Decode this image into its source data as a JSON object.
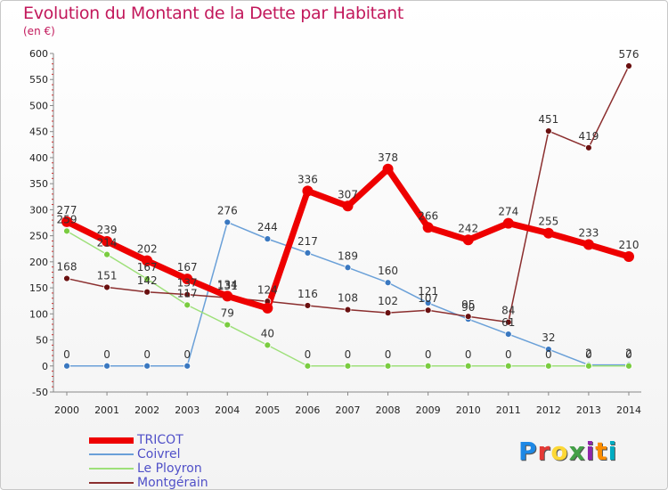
{
  "header": {
    "title": "Evolution du Montant de la Dette par Habitant",
    "subtitle": "(en €)"
  },
  "logo": {
    "text": "Proxiti",
    "colors": [
      "#1e88e5",
      "#e53935",
      "#fdd835",
      "#43a047",
      "#8e24aa",
      "#fb8c00",
      "#00acc1"
    ]
  },
  "chart_data": {
    "type": "line",
    "title": "Evolution du Montant de la Dette par Habitant",
    "subtitle": "(en €)",
    "xlabel": "",
    "ylabel": "",
    "x": [
      "2000",
      "2001",
      "2002",
      "2003",
      "2004",
      "2005",
      "2006",
      "2007",
      "2008",
      "2009",
      "2010",
      "2011",
      "2012",
      "2013",
      "2014"
    ],
    "ylim": [
      -50,
      600
    ],
    "yticks": [
      -50,
      0,
      50,
      100,
      150,
      200,
      250,
      300,
      350,
      400,
      450,
      500,
      550,
      600
    ],
    "grid": false,
    "legend_position": "bottom-left",
    "series": [
      {
        "name": "TRICOT",
        "color": "#ee0000",
        "width": 7,
        "marker_color": "#ee0000",
        "marker_r": 6,
        "values": [
          277,
          239,
          202,
          167,
          134,
          111,
          336,
          307,
          378,
          266,
          242,
          274,
          255,
          233,
          210
        ],
        "labels": [
          "277",
          "239",
          "202",
          "167",
          "134",
          "",
          "336",
          "307",
          "378",
          "266",
          "242",
          "274",
          "255",
          "233",
          "210"
        ]
      },
      {
        "name": "Coivrel",
        "color": "#6aa0d8",
        "width": 1.5,
        "marker_color": "#3a78c0",
        "marker_r": 3.5,
        "values": [
          0,
          0,
          0,
          0,
          276,
          244,
          217,
          189,
          160,
          121,
          90,
          61,
          32,
          2,
          2
        ],
        "labels": [
          "0",
          "0",
          "0",
          "0",
          "276",
          "244",
          "217",
          "189",
          "160",
          "121",
          "90",
          "61",
          "32",
          "2",
          "2"
        ]
      },
      {
        "name": "Le Ployron",
        "color": "#9ee07a",
        "width": 1.5,
        "marker_color": "#7acc40",
        "marker_r": 3.5,
        "values": [
          259,
          214,
          167,
          117,
          79,
          40,
          0,
          0,
          0,
          0,
          0,
          0,
          0,
          0,
          0
        ],
        "labels": [
          "259",
          "214",
          "167",
          "117",
          "79",
          "40",
          "0",
          "0",
          "0",
          "0",
          "0",
          "0",
          "0",
          "0",
          "0"
        ]
      },
      {
        "name": "Montgérain",
        "color": "#8b2e2e",
        "width": 1.5,
        "marker_color": "#6a1010",
        "marker_r": 3.5,
        "values": [
          168,
          151,
          142,
          137,
          131,
          124,
          116,
          108,
          102,
          107,
          95,
          84,
          451,
          419,
          576
        ],
        "labels": [
          "168",
          "151",
          "142",
          "137",
          "131",
          "124",
          "116",
          "108",
          "102",
          "107",
          "95",
          "84",
          "451",
          "419",
          "576"
        ]
      }
    ]
  }
}
